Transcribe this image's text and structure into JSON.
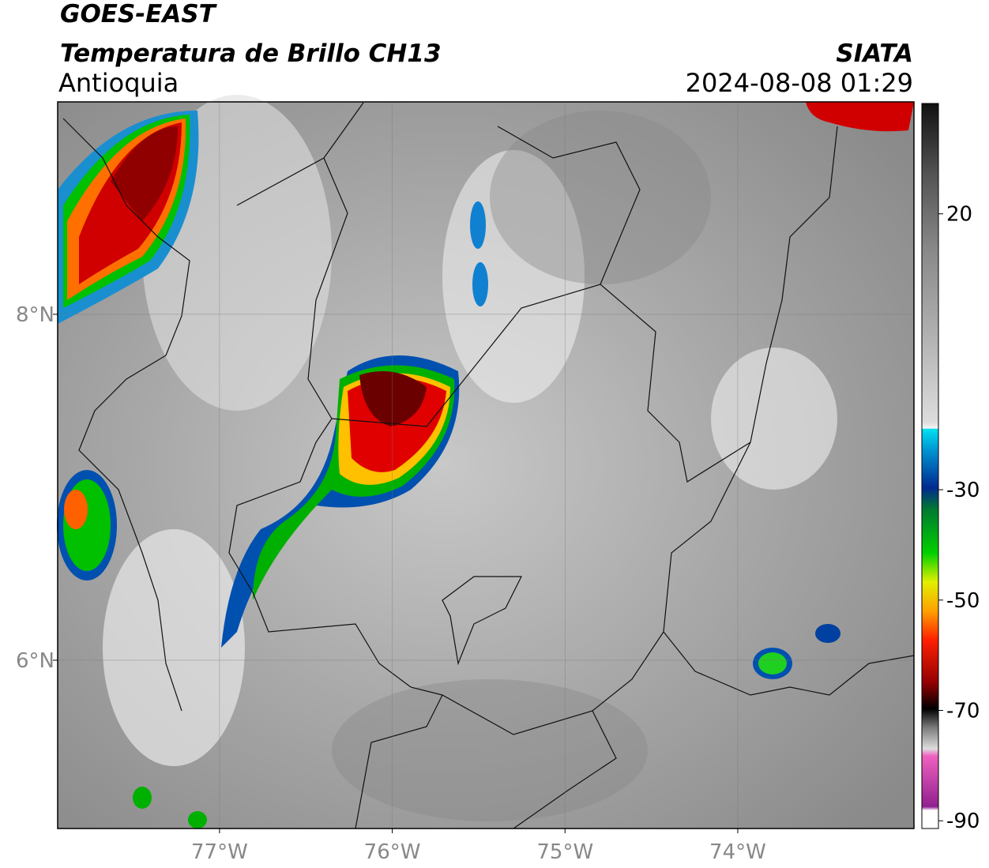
{
  "header": {
    "satellite": "GOES-EAST",
    "product": "Temperatura de Brillo CH13",
    "region": "Antioquia",
    "source": "SIATA",
    "datetime": "2024-08-08 01:29"
  },
  "map": {
    "xlim": [
      -77.937,
      -72.98
    ],
    "ylim": [
      5.027,
      9.228
    ],
    "xticks": [
      {
        "value": -77,
        "label": "77°W"
      },
      {
        "value": -76,
        "label": "76°W"
      },
      {
        "value": -75,
        "label": "75°W"
      },
      {
        "value": -74,
        "label": "74°W"
      }
    ],
    "yticks": [
      {
        "value": 8,
        "label": "8°N"
      },
      {
        "value": 6,
        "label": "6°N"
      }
    ],
    "grid": true
  },
  "colorbar": {
    "lim": [
      -91.4,
      40
    ],
    "ticks": [
      20,
      -30,
      -50,
      -70,
      -90
    ]
  }
}
